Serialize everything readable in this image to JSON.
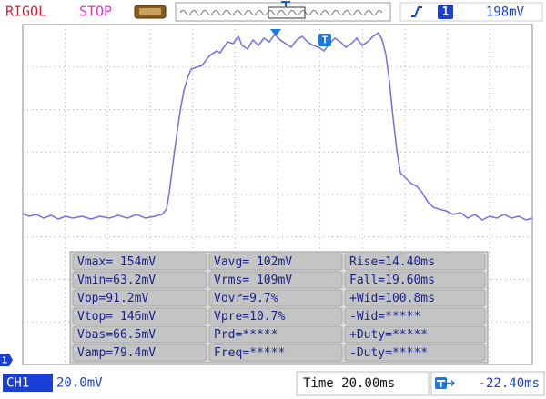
{
  "header": {
    "brand": "RIGOL",
    "status": "STOP",
    "trigger_channel": "1",
    "trigger_level": "198mV"
  },
  "markers": {
    "trigger_time": "T",
    "channel": "1"
  },
  "measurements": {
    "rows": [
      [
        "Vmax= 154mV",
        "Vavg= 102mV",
        "Rise=14.40ms"
      ],
      [
        "Vmin=63.2mV",
        "Vrms= 109mV",
        "Fall=19.60ms"
      ],
      [
        "Vpp=91.2mV",
        "Vovr=9.7%",
        "+Wid=100.8ms"
      ],
      [
        "Vtop= 146mV",
        "Vpre=10.7%",
        "-Wid=*****"
      ],
      [
        "Vbas=66.5mV",
        "Prd=*****",
        "+Duty=*****"
      ],
      [
        "Vamp=79.4mV",
        "Freq=*****",
        "-Duty=*****"
      ]
    ]
  },
  "footer": {
    "channel": "CH1",
    "scale": "20.0mV",
    "timebase": "Time 20.00ms",
    "offset": "-22.40ms"
  }
}
